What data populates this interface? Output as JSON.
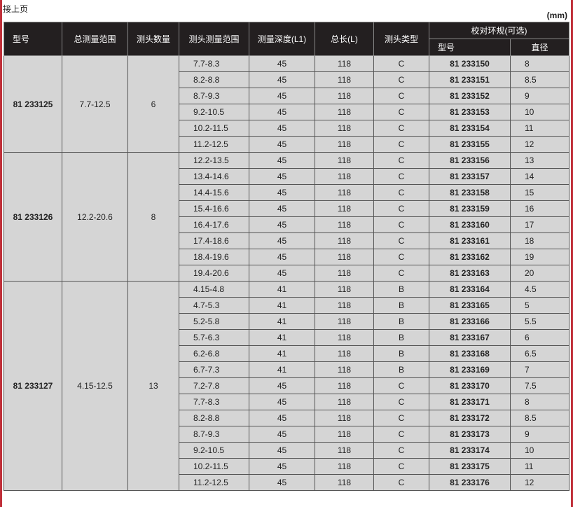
{
  "continued": "接上页",
  "unit": "(mm)",
  "headers": {
    "model": "型号",
    "total_range": "总测量范围",
    "head_count": "测头数量",
    "head_range": "测头测量范围",
    "depth": "测量深度(L1)",
    "length": "总长(L)",
    "head_type": "测头类型",
    "ring": "校对环规(可选)",
    "ring_model": "型号",
    "ring_diameter": "直径"
  },
  "groups": [
    {
      "model": "81 233125",
      "total_range": "7.7-12.5",
      "head_count": "6",
      "rows": [
        [
          "7.7-8.3",
          "45",
          "118",
          "C",
          "81 233150",
          "8"
        ],
        [
          "8.2-8.8",
          "45",
          "118",
          "C",
          "81 233151",
          "8.5"
        ],
        [
          "8.7-9.3",
          "45",
          "118",
          "C",
          "81 233152",
          "9"
        ],
        [
          "9.2-10.5",
          "45",
          "118",
          "C",
          "81 233153",
          "10"
        ],
        [
          "10.2-11.5",
          "45",
          "118",
          "C",
          "81 233154",
          "11"
        ],
        [
          "11.2-12.5",
          "45",
          "118",
          "C",
          "81 233155",
          "12"
        ]
      ]
    },
    {
      "model": "81 233126",
      "total_range": "12.2-20.6",
      "head_count": "8",
      "rows": [
        [
          "12.2-13.5",
          "45",
          "118",
          "C",
          "81 233156",
          "13"
        ],
        [
          "13.4-14.6",
          "45",
          "118",
          "C",
          "81 233157",
          "14"
        ],
        [
          "14.4-15.6",
          "45",
          "118",
          "C",
          "81 233158",
          "15"
        ],
        [
          "15.4-16.6",
          "45",
          "118",
          "C",
          "81 233159",
          "16"
        ],
        [
          "16.4-17.6",
          "45",
          "118",
          "C",
          "81 233160",
          "17"
        ],
        [
          "17.4-18.6",
          "45",
          "118",
          "C",
          "81 233161",
          "18"
        ],
        [
          "18.4-19.6",
          "45",
          "118",
          "C",
          "81 233162",
          "19"
        ],
        [
          "19.4-20.6",
          "45",
          "118",
          "C",
          "81 233163",
          "20"
        ]
      ]
    },
    {
      "model": "81 233127",
      "total_range": "4.15-12.5",
      "head_count": "13",
      "rows": [
        [
          "4.15-4.8",
          "41",
          "118",
          "B",
          "81 233164",
          "4.5"
        ],
        [
          "4.7-5.3",
          "41",
          "118",
          "B",
          "81 233165",
          "5"
        ],
        [
          "5.2-5.8",
          "41",
          "118",
          "B",
          "81 233166",
          "5.5"
        ],
        [
          "5.7-6.3",
          "41",
          "118",
          "B",
          "81 233167",
          "6"
        ],
        [
          "6.2-6.8",
          "41",
          "118",
          "B",
          "81 233168",
          "6.5"
        ],
        [
          "6.7-7.3",
          "41",
          "118",
          "B",
          "81 233169",
          "7"
        ],
        [
          "7.2-7.8",
          "45",
          "118",
          "C",
          "81 233170",
          "7.5"
        ],
        [
          "7.7-8.3",
          "45",
          "118",
          "C",
          "81 233171",
          "8"
        ],
        [
          "8.2-8.8",
          "45",
          "118",
          "C",
          "81 233172",
          "8.5"
        ],
        [
          "8.7-9.3",
          "45",
          "118",
          "C",
          "81 233173",
          "9"
        ],
        [
          "9.2-10.5",
          "45",
          "118",
          "C",
          "81 233174",
          "10"
        ],
        [
          "10.2-11.5",
          "45",
          "118",
          "C",
          "81 233175",
          "11"
        ],
        [
          "11.2-12.5",
          "45",
          "118",
          "C",
          "81 233176",
          "12"
        ]
      ]
    }
  ]
}
